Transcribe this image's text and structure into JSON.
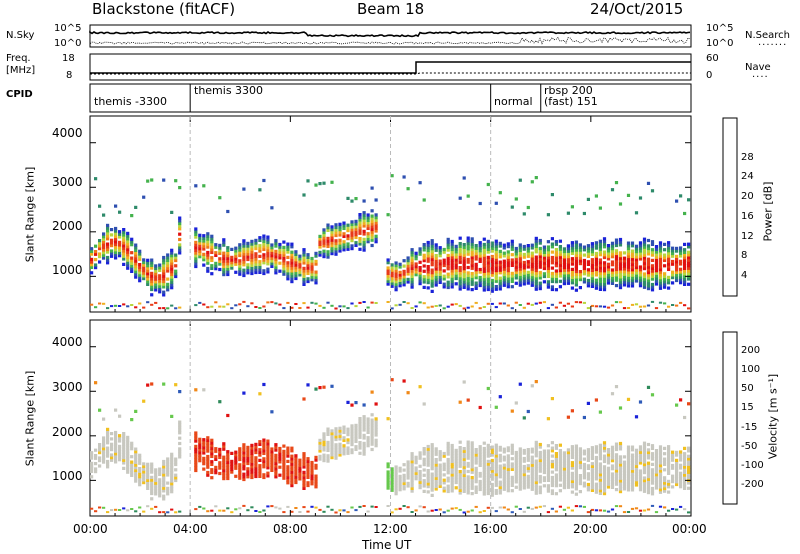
{
  "header": {
    "title_left": "Blackstone (fitACF)",
    "title_center": "Beam 18",
    "title_right": "24/Oct/2015"
  },
  "status_panels": {
    "nsky": {
      "label": "N.Sky",
      "left_tick_top": "10^5",
      "left_tick_bottom": "10^0",
      "right_tick_top": "10^5",
      "right_tick_bottom": "10^0",
      "right_label": "N.Search"
    },
    "freq": {
      "label_line1": "Freq.",
      "label_line2": "[MHz]",
      "left_tick_top": "18",
      "left_tick_bottom": "8",
      "right_tick_top": "60",
      "right_tick_bottom": "0",
      "right_label": "Nave"
    },
    "cpid": {
      "label": "CPID",
      "segments": [
        {
          "label": "themis -3300",
          "start_hour": 0.0,
          "end_hour": 4.0
        },
        {
          "label": "themis 3300",
          "start_hour": 4.0,
          "end_hour": 16.0
        },
        {
          "label": "normal",
          "start_hour": 16.0,
          "end_hour": 18.0
        },
        {
          "label": "rbsp 200",
          "start_hour": 18.0,
          "end_hour": 24.0
        },
        {
          "label": "(fast) 151",
          "start_hour": 18.0,
          "end_hour": 24.0
        }
      ]
    }
  },
  "chart_data": [
    {
      "type": "heatmap",
      "panel": "power",
      "xlabel": "Time UT",
      "ylabel": "Slant Range [km]",
      "x_ticks": [
        "00:00",
        "04:00",
        "08:00",
        "12:00",
        "16:00",
        "20:00",
        "00:00"
      ],
      "y_ticks": [
        1000,
        2000,
        3000,
        4000
      ],
      "xlim_hours": [
        0,
        24
      ],
      "ylim": [
        200,
        4600
      ],
      "colorbar_label": "Power [dB]",
      "colorbar_ticks": [
        "4",
        "8",
        "12",
        "16",
        "20",
        "24",
        "28"
      ],
      "colorbar_colors": [
        "#1a22d8",
        "#2e4fb0",
        "#2e8a6a",
        "#44b24c",
        "#b8d63c",
        "#f0b020",
        "#f07818",
        "#e83a18",
        "#e01010"
      ]
    },
    {
      "type": "heatmap",
      "panel": "velocity",
      "xlabel": "Time UT",
      "ylabel": "Slant Range [km]",
      "x_ticks": [
        "00:00",
        "04:00",
        "08:00",
        "12:00",
        "16:00",
        "20:00",
        "00:00"
      ],
      "y_ticks": [
        1000,
        2000,
        3000,
        4000
      ],
      "xlim_hours": [
        0,
        24
      ],
      "ylim": [
        200,
        4600
      ],
      "colorbar_label": "Velocity [m s⁻¹]",
      "colorbar_ticks": [
        "200",
        "100",
        "50",
        "15",
        "-15",
        "-50",
        "-100",
        "-200"
      ],
      "colorbar_colors": [
        "#1a22d8",
        "#2e5ab8",
        "#2e8a5a",
        "#66c84c",
        "#c8c8c0",
        "#f0c020",
        "#f08818",
        "#e84818",
        "#e01010"
      ]
    }
  ],
  "time_axis_label": "Time UT",
  "colors": {
    "power_band_core": "#e02818",
    "power_band_edge": "#2a9a5a",
    "velocity_ground": "#c8c8c0",
    "velocity_negative": "#e84818"
  }
}
